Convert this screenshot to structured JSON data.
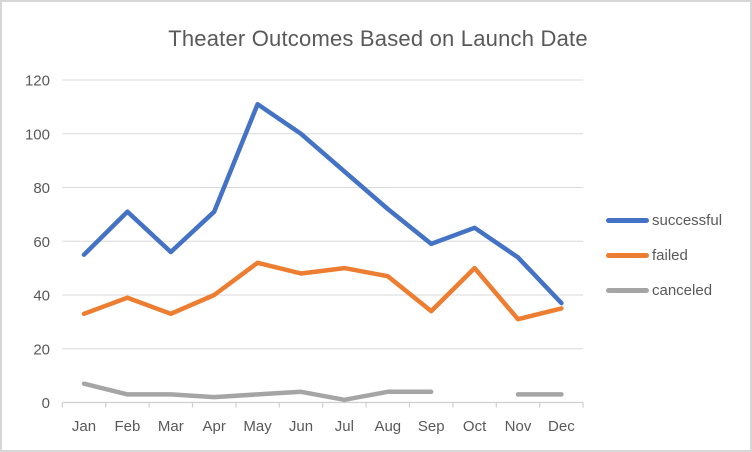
{
  "window": {
    "background": "#FFFFFF",
    "border_color": "#D6D6D6"
  },
  "chart_data": {
    "type": "line",
    "title": "Theater Outcomes Based on Launch Date",
    "categories": [
      "Jan",
      "Feb",
      "Mar",
      "Apr",
      "May",
      "Jun",
      "Jul",
      "Aug",
      "Sep",
      "Oct",
      "Nov",
      "Dec"
    ],
    "series": [
      {
        "name": "successful",
        "color": "#4472C4",
        "values": [
          55,
          71,
          56,
          71,
          111,
          100,
          86,
          72,
          59,
          65,
          54,
          37
        ]
      },
      {
        "name": "failed",
        "color": "#ED7D31",
        "values": [
          33,
          39,
          33,
          40,
          52,
          48,
          50,
          47,
          34,
          50,
          31,
          35
        ]
      },
      {
        "name": "canceled",
        "color": "#A5A5A5",
        "values": [
          7,
          3,
          3,
          2,
          3,
          4,
          1,
          4,
          4,
          null,
          3,
          3
        ]
      }
    ],
    "ylim": [
      0,
      120
    ],
    "yticks": [
      0,
      20,
      40,
      60,
      80,
      100,
      120
    ],
    "xlabel": "",
    "ylabel": "",
    "grid": "horizontal",
    "legend_position": "right",
    "text_color": "#595959",
    "gridline_color": "#D9D9D9",
    "axis_color": "#CFCFCF"
  }
}
